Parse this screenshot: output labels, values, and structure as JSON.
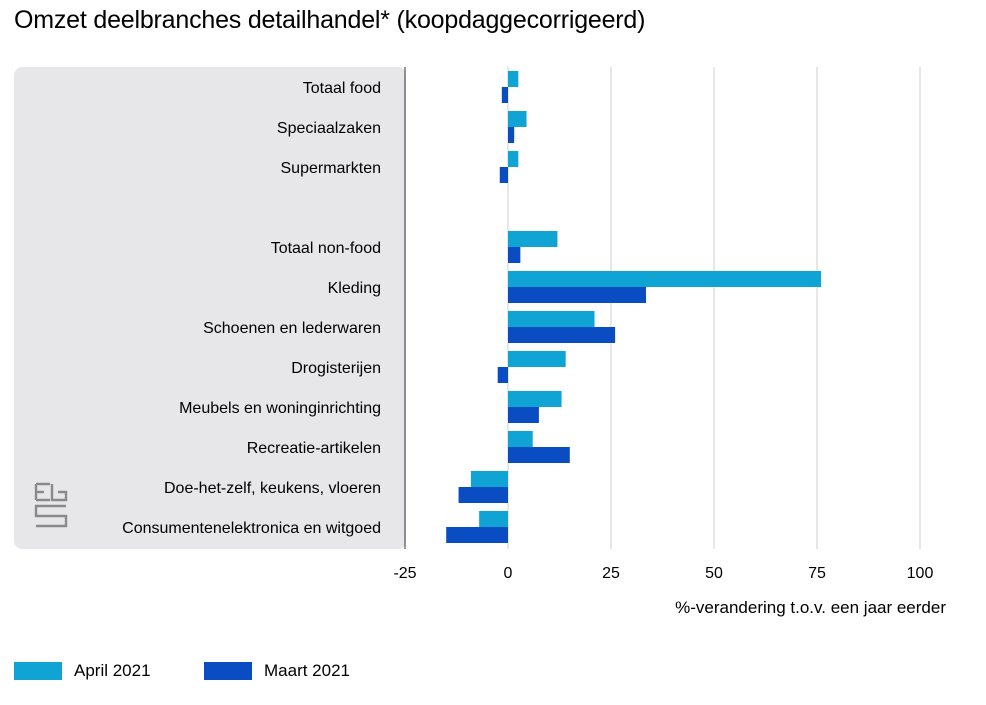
{
  "title": "Omzet deelbranches detailhandel* (koopdaggecorrigeerd)",
  "chart_data": {
    "type": "bar",
    "orientation": "horizontal",
    "categories": [
      "Totaal food",
      "Speciaalzaken",
      "Supermarkten",
      "",
      "Totaal non-food",
      "Kleding",
      "Schoenen en lederwaren",
      "Drogisterijen",
      "Meubels en woninginrichting",
      "Recreatie-artikelen",
      "Doe-het-zelf, keukens, vloeren",
      "Consumentenelektronica en witgoed"
    ],
    "series": [
      {
        "name": "April 2021",
        "color": "#0fa4d3",
        "values": [
          2.5,
          4.5,
          2.5,
          null,
          12,
          76,
          21,
          14,
          13,
          6,
          -9,
          -7
        ]
      },
      {
        "name": "Maart 2021",
        "color": "#0a4cc1",
        "values": [
          -1.5,
          1.5,
          -2,
          null,
          3,
          33.5,
          26,
          -2.5,
          7.5,
          15,
          -12,
          -15
        ]
      }
    ],
    "xlabel": "%-verandering t.o.v. een jaar eerder",
    "xlim": [
      -25,
      100
    ],
    "xticks": [
      "-25",
      "0",
      "25",
      "50",
      "75",
      "100"
    ],
    "grid": true,
    "legend_position": "bottom-left"
  },
  "logo": {
    "name": "cbs-logo",
    "text": "cbs"
  }
}
